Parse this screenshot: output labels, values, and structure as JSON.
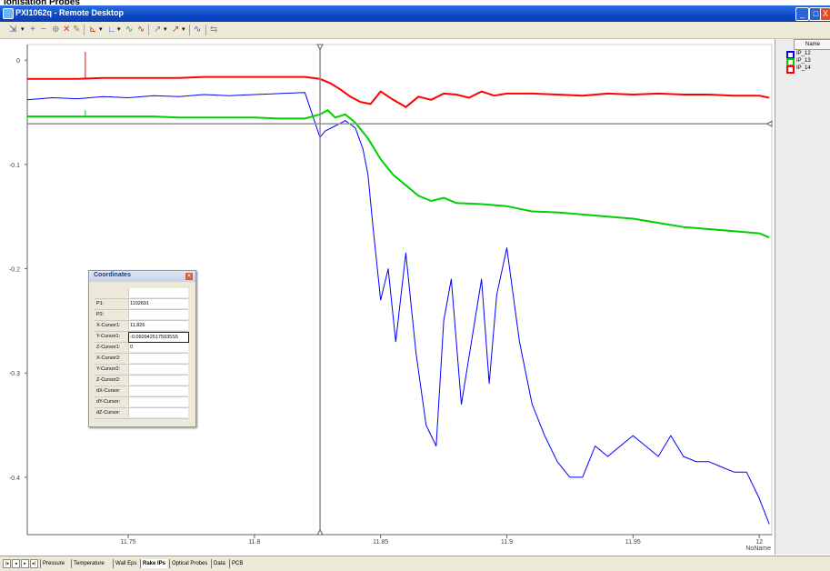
{
  "page_label": "Ionisation Probes",
  "window": {
    "title": "PXI1062q - Remote Desktop",
    "buttons": [
      "_",
      "□",
      "X"
    ]
  },
  "toolbar": {
    "icons": [
      "cursor-tool-icon",
      "dropdown-icon",
      "add-icon",
      "subtract-icon",
      "zoom-icon",
      "delete-icon",
      "pen-icon",
      "axes-icon",
      "dropdown-icon",
      "graph-icon",
      "dropdown-icon",
      "scale-icon",
      "autoscale-icon",
      "curve-icon",
      "dropdown-icon",
      "measure-icon",
      "dropdown-icon",
      "wave-icon",
      "export-icon"
    ]
  },
  "legend": {
    "header": "Name",
    "items": [
      {
        "label": "IP_12",
        "color": "#0000ff"
      },
      {
        "label": "IP_13",
        "color": "#00d000"
      },
      {
        "label": "IP_14",
        "color": "#ff0000"
      }
    ]
  },
  "coordinates_dialog": {
    "title": "Coordinates",
    "rows": [
      {
        "label": "",
        "value": ""
      },
      {
        "label": "P1:",
        "value": "1102691"
      },
      {
        "label": "P2:",
        "value": ""
      },
      {
        "label": "X-Cursor1:",
        "value": "11.826"
      },
      {
        "label": "Y-Cursor1:",
        "value": "-0.0609425175935S5"
      },
      {
        "label": "Z-Cursor1:",
        "value": "0"
      },
      {
        "label": "X-Cursor2:",
        "value": ""
      },
      {
        "label": "Y-Cursor2:",
        "value": ""
      },
      {
        "label": "Z-Cursor2:",
        "value": ""
      },
      {
        "label": "dX-Cursor:",
        "value": ""
      },
      {
        "label": "dY-Cursor:",
        "value": ""
      },
      {
        "label": "dZ-Cursor:",
        "value": ""
      }
    ]
  },
  "tabs": [
    {
      "label": "Pressure",
      "active": false
    },
    {
      "label": "Temperature",
      "active": false
    },
    {
      "label": "Wall Eps",
      "active": false
    },
    {
      "label": "Rake IPs",
      "active": true
    },
    {
      "label": "Optical Probes",
      "active": false
    },
    {
      "label": "Data",
      "active": false
    },
    {
      "label": "PCB",
      "active": false
    }
  ],
  "chart_data": {
    "type": "line",
    "xlabel": "NoName",
    "ylabel": "",
    "xlim": [
      11.71,
      12.005
    ],
    "ylim": [
      -0.455,
      0.015
    ],
    "x_ticks": [
      11.75,
      11.8,
      11.85,
      11.9,
      11.95,
      12
    ],
    "x_tick_labels": [
      "11.75",
      "11.8",
      "11.85",
      "11.9",
      "11.95",
      "12"
    ],
    "y_ticks": [
      0,
      -0.1,
      -0.2,
      -0.3,
      -0.4
    ],
    "y_tick_labels": [
      "0",
      "-0.1",
      "-0.2",
      "-0.3",
      "-0.4"
    ],
    "cursor": {
      "x": 11.826,
      "y": -0.061
    },
    "grid": false,
    "legend_position": "right panel",
    "series": [
      {
        "name": "IP_12",
        "color": "#0000ff",
        "x": [
          11.71,
          11.72,
          11.73,
          11.74,
          11.75,
          11.76,
          11.77,
          11.78,
          11.79,
          11.8,
          11.81,
          11.82,
          11.826,
          11.828,
          11.832,
          11.836,
          11.84,
          11.843,
          11.845,
          11.847,
          11.85,
          11.853,
          11.856,
          11.86,
          11.864,
          11.868,
          11.872,
          11.875,
          11.878,
          11.882,
          11.886,
          11.89,
          11.893,
          11.896,
          11.9,
          11.905,
          11.91,
          11.915,
          11.92,
          11.925,
          11.93,
          11.935,
          11.94,
          11.945,
          11.95,
          11.955,
          11.96,
          11.965,
          11.97,
          11.975,
          11.98,
          11.985,
          11.99,
          11.995,
          12.0,
          12.004
        ],
        "y": [
          -0.038,
          -0.036,
          -0.037,
          -0.035,
          -0.036,
          -0.034,
          -0.035,
          -0.033,
          -0.034,
          -0.033,
          -0.032,
          -0.031,
          -0.074,
          -0.068,
          -0.063,
          -0.058,
          -0.065,
          -0.085,
          -0.11,
          -0.16,
          -0.23,
          -0.2,
          -0.27,
          -0.185,
          -0.28,
          -0.35,
          -0.37,
          -0.25,
          -0.21,
          -0.33,
          -0.27,
          -0.21,
          -0.31,
          -0.225,
          -0.18,
          -0.27,
          -0.33,
          -0.36,
          -0.385,
          -0.4,
          -0.4,
          -0.37,
          -0.38,
          -0.37,
          -0.36,
          -0.37,
          -0.38,
          -0.36,
          -0.38,
          -0.385,
          -0.385,
          -0.39,
          -0.395,
          -0.395,
          -0.42,
          -0.445
        ]
      },
      {
        "name": "IP_13",
        "color": "#00d000",
        "x": [
          11.71,
          11.72,
          11.73,
          11.74,
          11.75,
          11.76,
          11.77,
          11.78,
          11.79,
          11.8,
          11.81,
          11.82,
          11.826,
          11.829,
          11.832,
          11.836,
          11.84,
          11.845,
          11.85,
          11.855,
          11.86,
          11.865,
          11.87,
          11.875,
          11.88,
          11.89,
          11.9,
          11.91,
          11.92,
          11.93,
          11.94,
          11.95,
          11.96,
          11.97,
          11.98,
          11.99,
          12.0,
          12.004
        ],
        "y": [
          -0.054,
          -0.054,
          -0.054,
          -0.054,
          -0.054,
          -0.054,
          -0.055,
          -0.055,
          -0.055,
          -0.055,
          -0.056,
          -0.056,
          -0.052,
          -0.048,
          -0.055,
          -0.052,
          -0.06,
          -0.075,
          -0.095,
          -0.11,
          -0.12,
          -0.13,
          -0.135,
          -0.132,
          -0.137,
          -0.138,
          -0.14,
          -0.145,
          -0.146,
          -0.148,
          -0.15,
          -0.152,
          -0.156,
          -0.16,
          -0.162,
          -0.164,
          -0.166,
          -0.17
        ]
      },
      {
        "name": "IP_14",
        "color": "#ff0000",
        "x": [
          11.71,
          11.72,
          11.73,
          11.74,
          11.75,
          11.76,
          11.77,
          11.78,
          11.79,
          11.8,
          11.81,
          11.82,
          11.826,
          11.83,
          11.834,
          11.838,
          11.842,
          11.846,
          11.85,
          11.855,
          11.86,
          11.865,
          11.87,
          11.875,
          11.88,
          11.885,
          11.89,
          11.895,
          11.9,
          11.91,
          11.92,
          11.93,
          11.94,
          11.95,
          11.96,
          11.97,
          11.98,
          11.99,
          12.0,
          12.004
        ],
        "y": [
          -0.018,
          -0.018,
          -0.018,
          -0.017,
          -0.017,
          -0.017,
          -0.017,
          -0.016,
          -0.016,
          -0.016,
          -0.016,
          -0.016,
          -0.018,
          -0.022,
          -0.028,
          -0.035,
          -0.04,
          -0.042,
          -0.03,
          -0.038,
          -0.045,
          -0.035,
          -0.038,
          -0.032,
          -0.033,
          -0.036,
          -0.03,
          -0.034,
          -0.032,
          -0.032,
          -0.033,
          -0.034,
          -0.032,
          -0.033,
          -0.032,
          -0.033,
          -0.033,
          -0.034,
          -0.034,
          -0.036
        ]
      }
    ],
    "spikes": [
      {
        "series": "IP_14",
        "x": 11.733,
        "y": 0.008
      },
      {
        "series": "IP_13",
        "x": 11.733,
        "y": -0.048
      }
    ]
  }
}
